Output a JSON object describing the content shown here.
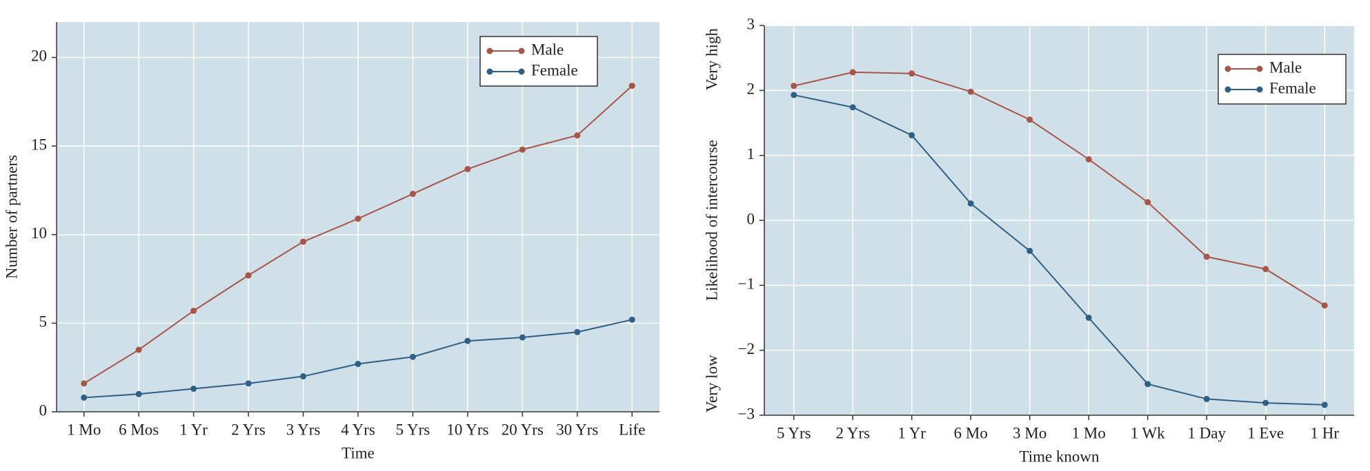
{
  "chart_data": [
    {
      "type": "line",
      "ylabel": "Number of partners",
      "xlabel": "Time",
      "categories": [
        "1 Mo",
        "6 Mos",
        "1 Yr",
        "2 Yrs",
        "3 Yrs",
        "4 Yrs",
        "5 Yrs",
        "10 Yrs",
        "20 Yrs",
        "30 Yrs",
        "Life"
      ],
      "series": [
        {
          "name": "Male",
          "color": "#a85448",
          "values": [
            1.6,
            3.5,
            5.7,
            7.7,
            9.6,
            10.9,
            12.3,
            13.7,
            14.8,
            15.6,
            18.4
          ]
        },
        {
          "name": "Female",
          "color": "#2e5f85",
          "values": [
            0.8,
            1.0,
            1.3,
            1.6,
            2.0,
            2.7,
            3.1,
            4.0,
            4.2,
            4.5,
            5.2
          ]
        }
      ],
      "ylim": [
        0,
        22
      ],
      "yticks": [
        0,
        5,
        10,
        15,
        20
      ],
      "grid": true,
      "legend": "upper right"
    },
    {
      "type": "line",
      "ylabel": "Likelihood of intercourse",
      "xlabel": "Time known",
      "annotations": [
        "Very high",
        "Very low"
      ],
      "categories": [
        "5 Yrs",
        "2 Yrs",
        "1 Yr",
        "6 Mo",
        "3 Mo",
        "1 Mo",
        "1 Wk",
        "1 Day",
        "1 Eve",
        "1 Hr"
      ],
      "series": [
        {
          "name": "Male",
          "color": "#a85448",
          "values": [
            2.07,
            2.28,
            2.26,
            1.98,
            1.55,
            0.94,
            0.28,
            -0.56,
            -0.75,
            -1.31
          ]
        },
        {
          "name": "Female",
          "color": "#2e5f85",
          "values": [
            1.93,
            1.74,
            1.31,
            0.26,
            -0.47,
            -1.5,
            -2.52,
            -2.75,
            -2.81,
            -2.84
          ]
        }
      ],
      "ylim": [
        -3,
        3
      ],
      "yticks": [
        {
          "value": -3,
          "label": "−3"
        },
        {
          "value": -2,
          "label": "−2"
        },
        {
          "value": -1,
          "label": "−1"
        },
        0,
        1,
        2,
        3
      ],
      "grid": true,
      "legend": "upper right"
    }
  ]
}
